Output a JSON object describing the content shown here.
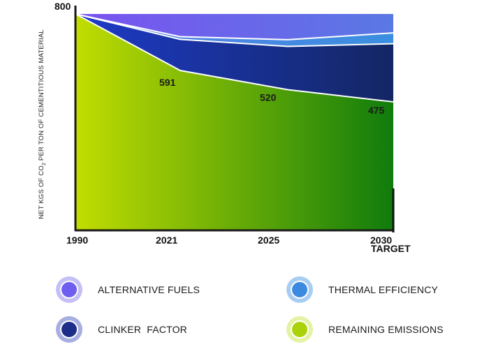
{
  "chart_data": {
    "type": "area",
    "stacked": true,
    "y_title_parts": [
      "NET KGS OF CO",
      "2",
      " PER TON OF CEMENTITIOUS MATERIAL"
    ],
    "x_tick_labels": [
      "1990",
      "2021",
      "2025",
      "2030"
    ],
    "x_tick_sublabels": [
      "",
      "",
      "",
      "TARGET"
    ],
    "start_label": "800",
    "ylim": [
      0,
      800
    ],
    "series": [
      {
        "name": "REMAINING EMISSIONS",
        "values": [
          800,
          591,
          520,
          475
        ],
        "labels": [
          "",
          "591",
          "520",
          "475"
        ],
        "color_start": "#c2dd02",
        "color_end": "#107c0c"
      },
      {
        "name": "CLINKER  FACTOR",
        "values": [
          0,
          115,
          160,
          215
        ],
        "color_start": "#1d3bc8",
        "color_end": "#142663"
      },
      {
        "name": "THERMAL EFFICIENCY",
        "values": [
          0,
          10,
          25,
          40
        ],
        "color_start": "#5b7fe6",
        "color_end": "#3b8fe0"
      },
      {
        "name": "ALTERNATIVE FUELS",
        "values": [
          0,
          84,
          95,
          70
        ],
        "color_start": "#7a52f0",
        "color_end": "#5a78e4"
      }
    ]
  },
  "legend": [
    {
      "label": "ALTERNATIVE FUELS",
      "color": "#6e5ff0",
      "ring": "#c4c0f7"
    },
    {
      "label": "THERMAL EFFICIENCY",
      "color": "#3b8ae0",
      "ring": "#a8cdf2"
    },
    {
      "label": "CLINKER  FACTOR",
      "color": "#1c2d8a",
      "ring": "#a7aee0"
    },
    {
      "label": "REMAINING EMISSIONS",
      "color": "#a9d20a",
      "ring": "#e4f2a6"
    }
  ]
}
